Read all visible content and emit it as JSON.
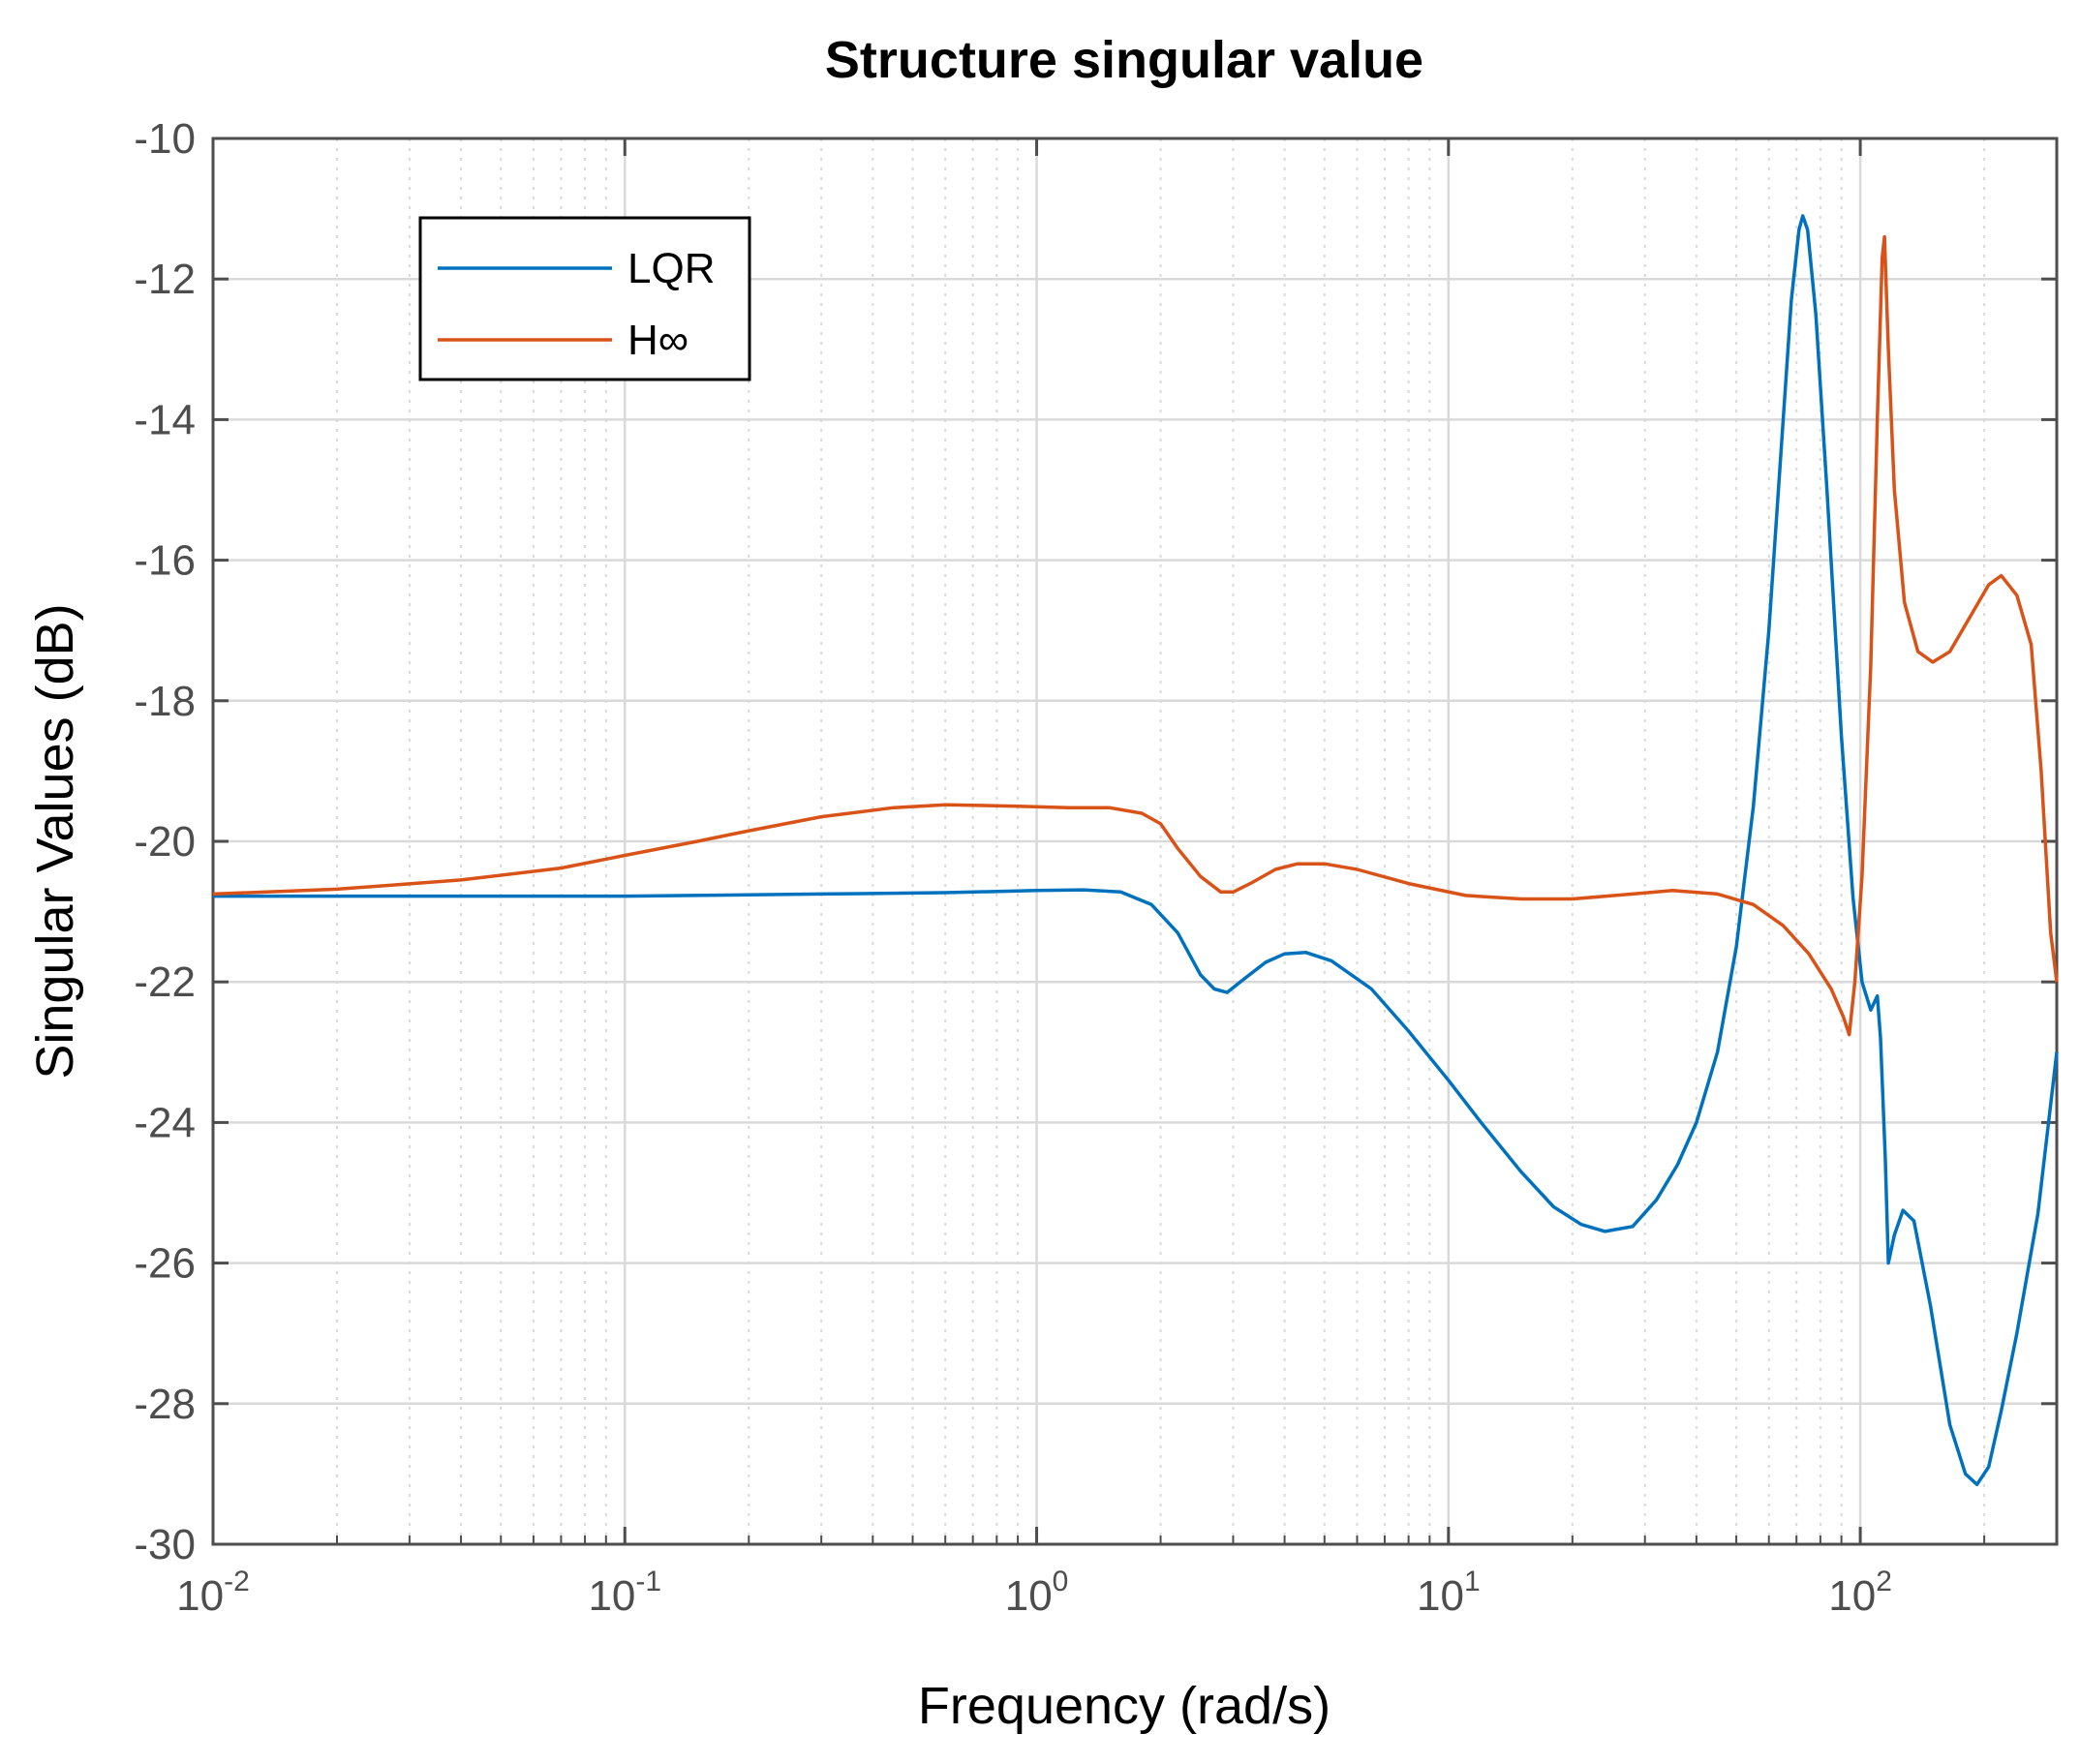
{
  "chart_data": {
    "type": "line",
    "title": "Structure singular value",
    "xlabel": "Frequency (rad/s)",
    "ylabel": "Singular Values (dB)",
    "xscale": "log",
    "xlim": [
      0.01,
      300
    ],
    "ylim": [
      -30,
      -10
    ],
    "grid": true,
    "legend_position": "top-left",
    "x_ticks": [
      {
        "base": "10",
        "exp": "-2"
      },
      {
        "base": "10",
        "exp": "-1"
      },
      {
        "base": "10",
        "exp": "0"
      },
      {
        "base": "10",
        "exp": "1"
      },
      {
        "base": "10",
        "exp": "2"
      }
    ],
    "y_ticks": [
      "-10",
      "-12",
      "-14",
      "-16",
      "-18",
      "-20",
      "-22",
      "-24",
      "-26",
      "-28",
      "-30"
    ],
    "colors": {
      "lqr": "#0072BD",
      "hinf": "#D95319",
      "axis": "#4d4d4d",
      "grid": "#d9d9d9"
    },
    "series": [
      {
        "name": "LQR",
        "color": "#0072BD",
        "points": [
          [
            0.01,
            -20.78
          ],
          [
            0.03,
            -20.78
          ],
          [
            0.1,
            -20.78
          ],
          [
            0.3,
            -20.75
          ],
          [
            0.6,
            -20.73
          ],
          [
            1.0,
            -20.7
          ],
          [
            1.3,
            -20.69
          ],
          [
            1.6,
            -20.72
          ],
          [
            1.9,
            -20.9
          ],
          [
            2.2,
            -21.3
          ],
          [
            2.5,
            -21.9
          ],
          [
            2.7,
            -22.1
          ],
          [
            2.9,
            -22.15
          ],
          [
            3.2,
            -21.95
          ],
          [
            3.6,
            -21.72
          ],
          [
            4.0,
            -21.6
          ],
          [
            4.5,
            -21.58
          ],
          [
            5.2,
            -21.7
          ],
          [
            6.5,
            -22.1
          ],
          [
            8.0,
            -22.7
          ],
          [
            10.0,
            -23.4
          ],
          [
            12.0,
            -24.0
          ],
          [
            15.0,
            -24.7
          ],
          [
            18.0,
            -25.2
          ],
          [
            21.0,
            -25.45
          ],
          [
            24.0,
            -25.55
          ],
          [
            28.0,
            -25.48
          ],
          [
            32.0,
            -25.1
          ],
          [
            36.0,
            -24.6
          ],
          [
            40.0,
            -24.0
          ],
          [
            45.0,
            -23.0
          ],
          [
            50.0,
            -21.5
          ],
          [
            55.0,
            -19.5
          ],
          [
            60.0,
            -17.0
          ],
          [
            65.0,
            -14.0
          ],
          [
            68.0,
            -12.3
          ],
          [
            71.0,
            -11.3
          ],
          [
            72.5,
            -11.1
          ],
          [
            74.5,
            -11.3
          ],
          [
            78.0,
            -12.5
          ],
          [
            83.0,
            -15.0
          ],
          [
            90.0,
            -18.5
          ],
          [
            96.0,
            -20.8
          ],
          [
            101.0,
            -22.0
          ],
          [
            106.0,
            -22.4
          ],
          [
            108.0,
            -22.3
          ],
          [
            110.0,
            -22.2
          ],
          [
            112.0,
            -22.8
          ],
          [
            115.0,
            -24.5
          ],
          [
            117.0,
            -26.0
          ],
          [
            121.0,
            -25.6
          ],
          [
            127.0,
            -25.25
          ],
          [
            135.0,
            -25.4
          ],
          [
            148.0,
            -26.6
          ],
          [
            165.0,
            -28.3
          ],
          [
            180.0,
            -29.0
          ],
          [
            192.0,
            -29.15
          ],
          [
            205.0,
            -28.9
          ],
          [
            220.0,
            -28.1
          ],
          [
            240.0,
            -27.0
          ],
          [
            270.0,
            -25.3
          ],
          [
            300.0,
            -23.0
          ]
        ]
      },
      {
        "name": "H∞",
        "color": "#D95319",
        "points": [
          [
            0.01,
            -20.75
          ],
          [
            0.02,
            -20.68
          ],
          [
            0.04,
            -20.55
          ],
          [
            0.07,
            -20.38
          ],
          [
            0.1,
            -20.2
          ],
          [
            0.15,
            -20.0
          ],
          [
            0.2,
            -19.85
          ],
          [
            0.3,
            -19.65
          ],
          [
            0.45,
            -19.52
          ],
          [
            0.6,
            -19.48
          ],
          [
            0.9,
            -19.5
          ],
          [
            1.2,
            -19.52
          ],
          [
            1.5,
            -19.52
          ],
          [
            1.8,
            -19.6
          ],
          [
            2.0,
            -19.75
          ],
          [
            2.2,
            -20.1
          ],
          [
            2.5,
            -20.5
          ],
          [
            2.8,
            -20.72
          ],
          [
            3.0,
            -20.72
          ],
          [
            3.3,
            -20.6
          ],
          [
            3.8,
            -20.4
          ],
          [
            4.3,
            -20.32
          ],
          [
            5.0,
            -20.32
          ],
          [
            6.0,
            -20.4
          ],
          [
            8.0,
            -20.6
          ],
          [
            11.0,
            -20.77
          ],
          [
            15.0,
            -20.82
          ],
          [
            20.0,
            -20.82
          ],
          [
            28.0,
            -20.75
          ],
          [
            35.0,
            -20.7
          ],
          [
            45.0,
            -20.75
          ],
          [
            55.0,
            -20.9
          ],
          [
            65.0,
            -21.2
          ],
          [
            75.0,
            -21.6
          ],
          [
            85.0,
            -22.1
          ],
          [
            91.0,
            -22.5
          ],
          [
            94.0,
            -22.75
          ],
          [
            97.0,
            -22.0
          ],
          [
            101.0,
            -20.5
          ],
          [
            106.0,
            -17.5
          ],
          [
            110.0,
            -14.0
          ],
          [
            113.0,
            -11.7
          ],
          [
            114.5,
            -11.4
          ],
          [
            117.0,
            -13.0
          ],
          [
            121.0,
            -15.0
          ],
          [
            128.0,
            -16.6
          ],
          [
            138.0,
            -17.3
          ],
          [
            150.0,
            -17.45
          ],
          [
            165.0,
            -17.3
          ],
          [
            185.0,
            -16.8
          ],
          [
            205.0,
            -16.35
          ],
          [
            220.0,
            -16.22
          ],
          [
            240.0,
            -16.5
          ],
          [
            260.0,
            -17.2
          ],
          [
            275.0,
            -19.0
          ],
          [
            290.0,
            -21.3
          ],
          [
            300.0,
            -22.0
          ]
        ]
      }
    ]
  }
}
